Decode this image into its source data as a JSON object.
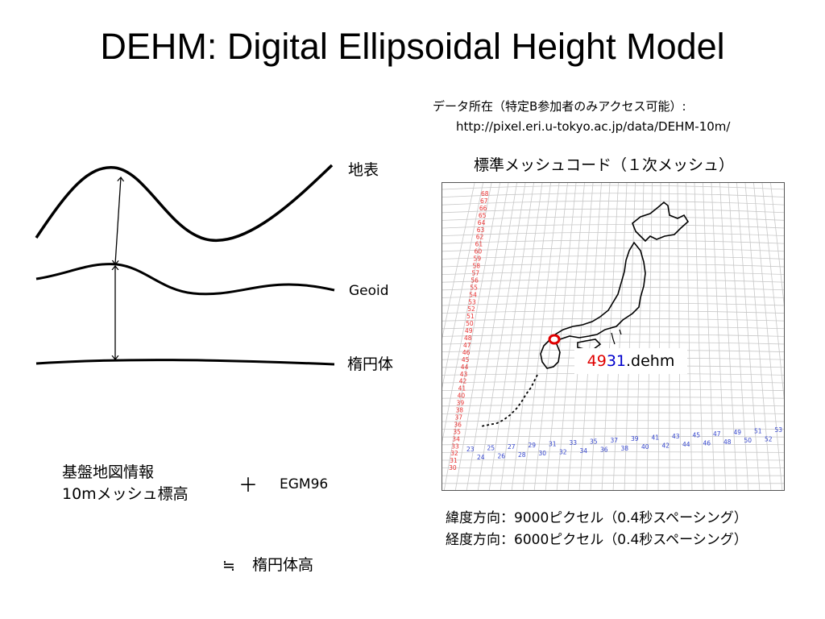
{
  "title": "DEHM: Digital Ellipsoidal Height Model",
  "data_location": {
    "line1": "データ所在（特定B参加者のみアクセス可能）:",
    "url": "http://pixel.eri.u-tokyo.ac.jp/data/DEHM-10m/"
  },
  "diagram": {
    "label_surface": "地表",
    "label_geoid": "Geoid",
    "label_ellipsoid": "楕円体"
  },
  "bottom": {
    "base_map_line1": "基盤地図情報",
    "base_map_line2": "10mメッシュ標高",
    "plus": "＋",
    "egm": "EGM96",
    "approx": "≒",
    "result": "楕円体高"
  },
  "map": {
    "heading": "標準メッシュコード（１次メッシュ）",
    "tile_part1": "49",
    "tile_part2": "31",
    "tile_ext": ".dehm",
    "lat_codes": [
      "68",
      "67",
      "66",
      "65",
      "64",
      "63",
      "62",
      "61",
      "60",
      "59",
      "58",
      "57",
      "56",
      "55",
      "54",
      "53",
      "52",
      "51",
      "50",
      "49",
      "48",
      "47",
      "46",
      "45",
      "44",
      "43",
      "42",
      "41",
      "40",
      "39",
      "38",
      "37",
      "36",
      "35",
      "34",
      "33",
      "32",
      "31",
      "30"
    ],
    "lon_codes_upper": [
      "23",
      "25",
      "27",
      "29",
      "31",
      "33",
      "35",
      "37",
      "39",
      "41",
      "43",
      "45",
      "47",
      "49",
      "51",
      "53"
    ],
    "lon_codes_lower": [
      "24",
      "26",
      "28",
      "30",
      "32",
      "34",
      "36",
      "38",
      "40",
      "42",
      "44",
      "46",
      "48",
      "50",
      "52"
    ],
    "colors": {
      "lat_codes": "#e83030",
      "lon_codes": "#3344cc",
      "grid": "#c8c8c8",
      "marker": "#e00000"
    }
  },
  "pixels": {
    "lat": "緯度方向：9000ピクセル（0.4秒スペーシング）",
    "lon": "経度方向：6000ピクセル（0.4秒スペーシング）"
  }
}
